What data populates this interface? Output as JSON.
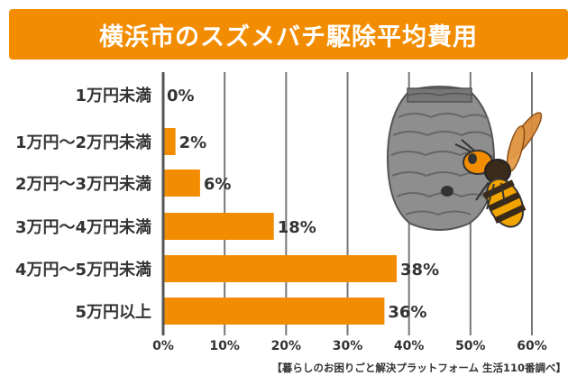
{
  "chart_data": {
    "type": "bar",
    "orientation": "horizontal",
    "title": "横浜市のスズメバチ駆除平均費用",
    "categories": [
      "1万円未満",
      "1万円〜2万円未満",
      "2万円〜3万円未満",
      "3万円〜4万円未満",
      "4万円〜5万円未満",
      "5万円以上"
    ],
    "values": [
      0,
      2,
      6,
      18,
      38,
      36
    ],
    "value_labels": [
      "0%",
      "2%",
      "6%",
      "18%",
      "38%",
      "36%"
    ],
    "x_ticks": [
      "0%",
      "10%",
      "20%",
      "30%",
      "40%",
      "50%",
      "60%"
    ],
    "xlim": [
      0,
      60
    ],
    "grid": true,
    "bar_color": "#f28c00"
  },
  "source": "【暮らしのお困りごと解決プラットフォーム 生活110番調べ】",
  "illustration": {
    "icon": "hornet-and-nest"
  },
  "colors": {
    "accent": "#f28c00",
    "grid": "#777777",
    "text": "#333333"
  }
}
